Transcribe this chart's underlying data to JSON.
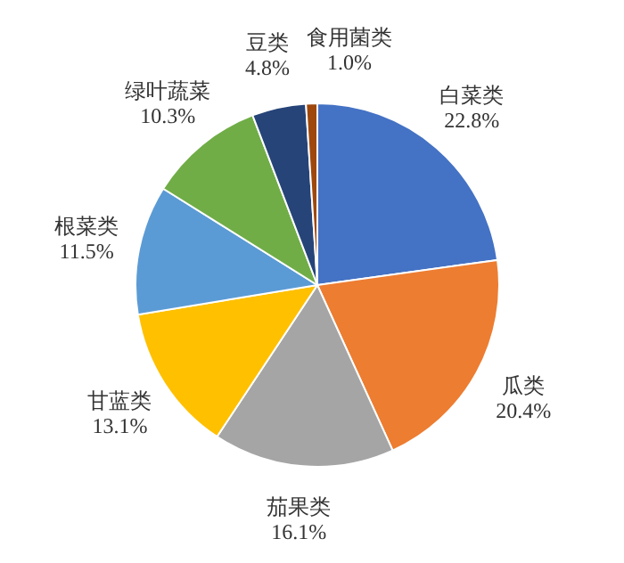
{
  "chart_data": {
    "type": "pie",
    "categories": [
      "白菜类",
      "瓜类",
      "茄果类",
      "甘蓝类",
      "根菜类",
      "绿叶蔬菜",
      "豆类",
      "食用菌类"
    ],
    "values": [
      22.8,
      20.4,
      16.1,
      13.1,
      11.5,
      10.3,
      4.8,
      1.0
    ],
    "colors": [
      "#4472c4",
      "#ed7d31",
      "#a5a5a5",
      "#ffc000",
      "#5b9bd5",
      "#70ad47",
      "#264478",
      "#9e480e"
    ],
    "value_labels": [
      "22.8%",
      "20.4%",
      "16.1%",
      "13.1%",
      "11.5%",
      "10.3%",
      "4.8%",
      "1.0%"
    ]
  }
}
